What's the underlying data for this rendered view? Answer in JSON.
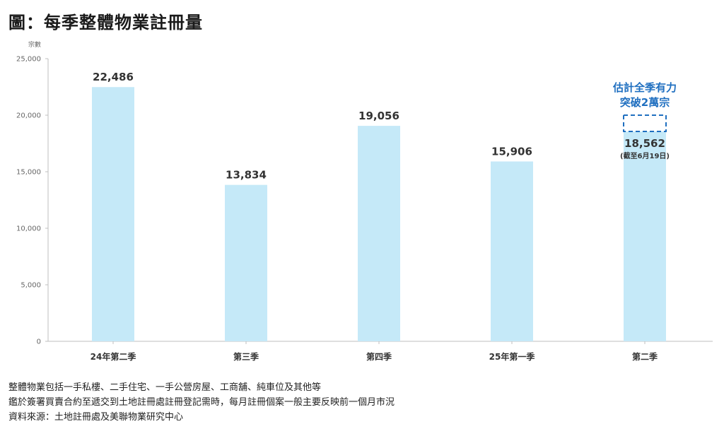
{
  "page": {
    "title": "圖：每季整體物業註冊量"
  },
  "chart_data": {
    "type": "bar",
    "ylabel": "宗數",
    "ylim": [
      0,
      25000
    ],
    "yticks": [
      0,
      5000,
      10000,
      15000,
      20000,
      25000
    ],
    "ytick_labels": [
      "0",
      "5,000",
      "10,000",
      "15,000",
      "20,000",
      "25,000"
    ],
    "categories": [
      "24年第二季",
      "第三季",
      "第四季",
      "25年第一季",
      "第二季"
    ],
    "values": [
      22486,
      13834,
      19056,
      15906,
      18562
    ],
    "value_labels": [
      "22,486",
      "13,834",
      "19,056",
      "15,906",
      "18,562"
    ],
    "bar_color": "#c5e9f8",
    "annotations": {
      "last_bar_note": "(截至6月19日)",
      "estimate_line1": "估計全季有力",
      "estimate_line2": "突破2萬宗",
      "estimate_value": 20000,
      "estimate_color": "#1f6fc0"
    }
  },
  "notes": [
    "整體物業包括一手私樓、二手住宅、一手公營房屋、工商舖、純車位及其他等",
    "鑑於簽署買賣合約至遞交到土地註冊處註冊登記需時，每月註冊個案一般主要反映前一個月市況",
    "資料來源：土地註冊處及美聯物業研究中心"
  ]
}
